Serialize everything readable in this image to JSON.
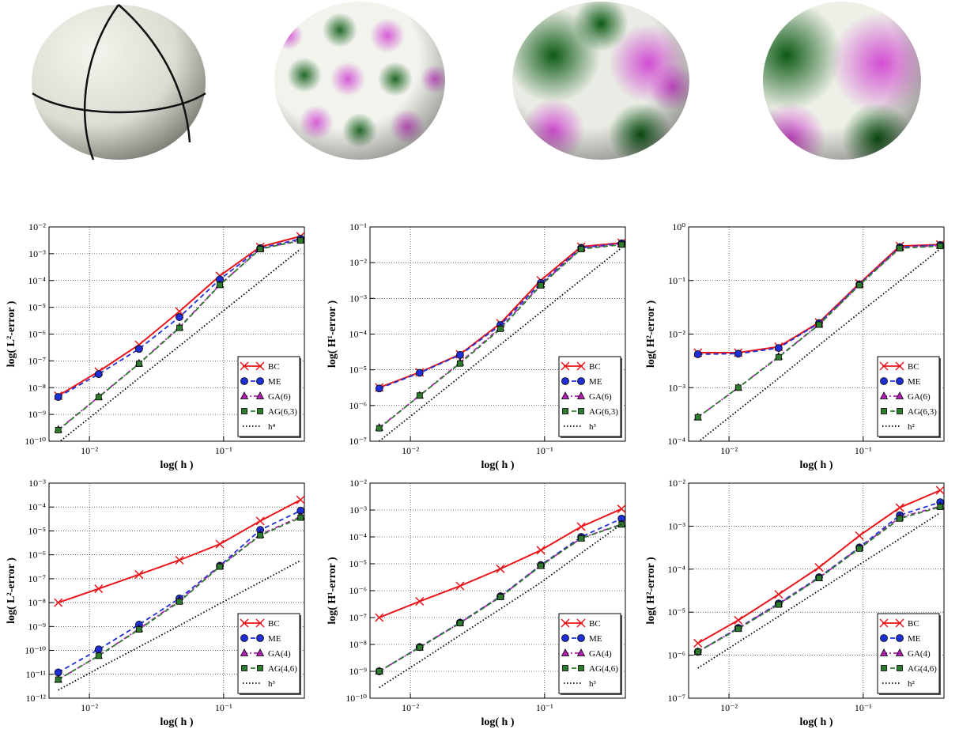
{
  "chart_data": [
    {
      "type": "line",
      "xlabel": "log( h )",
      "ylabel": "log( L²-error )",
      "xscale": "log",
      "yscale": "log",
      "grid": true,
      "legend": "lower right",
      "x": [
        0.005859375,
        0.01171875,
        0.0234375,
        0.046875,
        0.09375,
        0.1875,
        0.375
      ],
      "xlim": [
        0.005,
        0.4
      ],
      "xticks": [
        {
          "value": 0.01,
          "label": "10⁻²"
        },
        {
          "value": 0.1,
          "label": "10⁻¹"
        }
      ],
      "ylim": [
        1e-10,
        0.01
      ],
      "yticks": [
        {
          "value": 1e-10,
          "label": "10⁻¹⁰"
        },
        {
          "value": 1e-09,
          "label": "10⁻⁹"
        },
        {
          "value": 1e-08,
          "label": "10⁻⁸"
        },
        {
          "value": 1e-07,
          "label": "10⁻⁷"
        },
        {
          "value": 1e-06,
          "label": "10⁻⁶"
        },
        {
          "value": 1e-05,
          "label": "10⁻⁵"
        },
        {
          "value": 0.0001,
          "label": "10⁻⁴"
        },
        {
          "value": 0.001,
          "label": "10⁻³"
        },
        {
          "value": 0.01,
          "label": "10⁻²"
        }
      ],
      "series": [
        {
          "name": "BC",
          "color": "#e8161b",
          "marker": "x",
          "linestyle": "solid",
          "values": [
            5e-09,
            4e-08,
            4e-07,
            7e-06,
            0.00015,
            0.0018,
            0.0045
          ]
        },
        {
          "name": "ME",
          "color": "#1f2fd6",
          "marker": "circle",
          "linestyle": "dashed",
          "values": [
            4.5e-09,
            3.2e-08,
            2.8e-07,
            4.3e-06,
            0.00011,
            0.0016,
            0.0036
          ]
        },
        {
          "name": "GA(6)",
          "color": "#b020b0",
          "marker": "triangle",
          "linestyle": "dashdot",
          "values": [
            2.7e-10,
            4.5e-09,
            8e-08,
            1.8e-06,
            7e-05,
            0.0015,
            0.0032
          ]
        },
        {
          "name": "AG(6,3)",
          "color": "#2e7d2e",
          "marker": "square",
          "linestyle": "dashed",
          "values": [
            2.6e-10,
            4.4e-09,
            7.8e-08,
            1.7e-06,
            6.8e-05,
            0.0015,
            0.0031
          ]
        },
        {
          "name": "h⁴",
          "color": "#000000",
          "marker": "none",
          "linestyle": "dotted",
          "values": [
            8.8e-11,
            1.4e-09,
            2.3e-08,
            3.6e-07,
            5.8e-06,
            9.3e-05,
            0.0015
          ]
        }
      ]
    },
    {
      "type": "line",
      "xlabel": "log( h )",
      "ylabel": "log( H¹-error )",
      "xscale": "log",
      "yscale": "log",
      "grid": true,
      "legend": "lower right",
      "x": [
        0.005859375,
        0.01171875,
        0.0234375,
        0.046875,
        0.09375,
        0.1875,
        0.375
      ],
      "xlim": [
        0.005,
        0.4
      ],
      "xticks": [
        {
          "value": 0.01,
          "label": "10⁻²"
        },
        {
          "value": 0.1,
          "label": "10⁻¹"
        }
      ],
      "ylim": [
        1e-07,
        0.1
      ],
      "yticks": [
        {
          "value": 1e-07,
          "label": "10⁻⁷"
        },
        {
          "value": 1e-06,
          "label": "10⁻⁶"
        },
        {
          "value": 1e-05,
          "label": "10⁻⁵"
        },
        {
          "value": 0.0001,
          "label": "10⁻⁴"
        },
        {
          "value": 0.001,
          "label": "10⁻³"
        },
        {
          "value": 0.01,
          "label": "10⁻²"
        },
        {
          "value": 0.1,
          "label": "10⁻¹"
        }
      ],
      "series": [
        {
          "name": "BC",
          "color": "#e8161b",
          "marker": "x",
          "linestyle": "solid",
          "values": [
            3.2e-06,
            8.5e-06,
            2.7e-05,
            0.0002,
            0.0032,
            0.028,
            0.036
          ]
        },
        {
          "name": "ME",
          "color": "#1f2fd6",
          "marker": "circle",
          "linestyle": "dashed",
          "values": [
            3e-06,
            8.2e-06,
            2.6e-05,
            0.00018,
            0.0027,
            0.026,
            0.035
          ]
        },
        {
          "name": "GA(6)",
          "color": "#b020b0",
          "marker": "triangle",
          "linestyle": "dashdot",
          "values": [
            2.4e-07,
            1.9e-06,
            1.6e-05,
            0.00015,
            0.0024,
            0.025,
            0.033
          ]
        },
        {
          "name": "AG(6,3)",
          "color": "#2e7d2e",
          "marker": "square",
          "linestyle": "dashed",
          "values": [
            2.3e-07,
            1.9e-06,
            1.5e-05,
            0.00014,
            0.0023,
            0.024,
            0.032
          ]
        },
        {
          "name": "h³",
          "color": "#000000",
          "marker": "none",
          "linestyle": "dotted",
          "values": [
            1e-07,
            8e-07,
            6.4e-06,
            5.1e-05,
            0.00041,
            0.0033,
            0.026
          ]
        }
      ]
    },
    {
      "type": "line",
      "xlabel": "log( h )",
      "ylabel": "log( H²-error )",
      "xscale": "log",
      "yscale": "log",
      "grid": true,
      "legend": "lower right",
      "x": [
        0.005859375,
        0.01171875,
        0.0234375,
        0.046875,
        0.09375,
        0.1875,
        0.375
      ],
      "xlim": [
        0.005,
        0.4
      ],
      "xticks": [
        {
          "value": 0.01,
          "label": "10⁻²"
        },
        {
          "value": 0.1,
          "label": "10⁻¹"
        }
      ],
      "ylim": [
        0.0001,
        1
      ],
      "yticks": [
        {
          "value": 0.0001,
          "label": "10⁻⁴"
        },
        {
          "value": 0.001,
          "label": "10⁻³"
        },
        {
          "value": 0.01,
          "label": "10⁻²"
        },
        {
          "value": 0.1,
          "label": "10⁻¹"
        },
        {
          "value": 1,
          "label": "10⁰"
        }
      ],
      "series": [
        {
          "name": "BC",
          "color": "#e8161b",
          "marker": "x",
          "linestyle": "solid",
          "values": [
            0.0045,
            0.0045,
            0.0058,
            0.0165,
            0.088,
            0.44,
            0.47
          ]
        },
        {
          "name": "ME",
          "color": "#1f2fd6",
          "marker": "circle",
          "linestyle": "dashed",
          "values": [
            0.0042,
            0.0043,
            0.0055,
            0.016,
            0.085,
            0.42,
            0.46
          ]
        },
        {
          "name": "GA(6)",
          "color": "#b020b0",
          "marker": "triangle",
          "linestyle": "dashdot",
          "values": [
            0.00028,
            0.001,
            0.0038,
            0.015,
            0.083,
            0.41,
            0.45
          ]
        },
        {
          "name": "AG(6,3)",
          "color": "#2e7d2e",
          "marker": "square",
          "linestyle": "dashed",
          "values": [
            0.00028,
            0.001,
            0.0037,
            0.015,
            0.082,
            0.4,
            0.44
          ]
        },
        {
          "name": "h²",
          "color": "#000000",
          "marker": "none",
          "linestyle": "dotted",
          "values": [
            9.6e-05,
            0.00038,
            0.0015,
            0.0062,
            0.025,
            0.098,
            0.39
          ]
        }
      ]
    },
    {
      "type": "line",
      "xlabel": "log( h )",
      "ylabel": "log( L²-error )",
      "xscale": "log",
      "yscale": "log",
      "grid": true,
      "legend": "lower right",
      "x": [
        0.005859375,
        0.01171875,
        0.0234375,
        0.046875,
        0.09375,
        0.1875,
        0.375
      ],
      "xlim": [
        0.005,
        0.4
      ],
      "xticks": [
        {
          "value": 0.01,
          "label": "10⁻²"
        },
        {
          "value": 0.1,
          "label": "10⁻¹"
        }
      ],
      "ylim": [
        1e-12,
        0.001
      ],
      "yticks": [
        {
          "value": 1e-12,
          "label": "10⁻¹²"
        },
        {
          "value": 1e-11,
          "label": "10⁻¹¹"
        },
        {
          "value": 1e-10,
          "label": "10⁻¹⁰"
        },
        {
          "value": 1e-09,
          "label": "10⁻⁹"
        },
        {
          "value": 1e-08,
          "label": "10⁻⁸"
        },
        {
          "value": 1e-07,
          "label": "10⁻⁷"
        },
        {
          "value": 1e-06,
          "label": "10⁻⁶"
        },
        {
          "value": 1e-05,
          "label": "10⁻⁵"
        },
        {
          "value": 0.0001,
          "label": "10⁻⁴"
        },
        {
          "value": 0.001,
          "label": "10⁻³"
        }
      ],
      "series": [
        {
          "name": "BC",
          "color": "#e8161b",
          "marker": "x",
          "linestyle": "solid",
          "values": [
            1e-08,
            3.8e-08,
            1.5e-07,
            6e-07,
            2.8e-06,
            2.6e-05,
            0.0002
          ]
        },
        {
          "name": "ME",
          "color": "#1f2fd6",
          "marker": "circle",
          "linestyle": "dashed",
          "values": [
            1.2e-11,
            1.1e-10,
            1.2e-09,
            1.5e-08,
            3.5e-07,
            1.1e-05,
            7e-05
          ]
        },
        {
          "name": "GA(4)",
          "color": "#b020b0",
          "marker": "triangle",
          "linestyle": "dashdot",
          "values": [
            6e-12,
            6e-11,
            8e-10,
            1.2e-08,
            3.3e-07,
            7e-06,
            4e-05
          ]
        },
        {
          "name": "AG(4,6)",
          "color": "#2e7d2e",
          "marker": "square",
          "linestyle": "dashed",
          "values": [
            6e-12,
            6e-11,
            7.5e-10,
            1.1e-08,
            3.2e-07,
            6.5e-06,
            3.6e-05
          ]
        },
        {
          "name": "h³",
          "color": "#000000",
          "marker": "none",
          "linestyle": "dotted",
          "values": [
            2.2e-12,
            1.8e-11,
            1.4e-10,
            1.1e-09,
            9.1e-09,
            7.2e-08,
            5.8e-07
          ]
        }
      ]
    },
    {
      "type": "line",
      "xlabel": "log( h )",
      "ylabel": "log( H¹-error )",
      "xscale": "log",
      "yscale": "log",
      "grid": true,
      "legend": "lower right",
      "x": [
        0.005859375,
        0.01171875,
        0.0234375,
        0.046875,
        0.09375,
        0.1875,
        0.375
      ],
      "xlim": [
        0.005,
        0.4
      ],
      "xticks": [
        {
          "value": 0.01,
          "label": "10⁻²"
        },
        {
          "value": 0.1,
          "label": "10⁻¹"
        }
      ],
      "ylim": [
        1e-10,
        0.01
      ],
      "yticks": [
        {
          "value": 1e-10,
          "label": "10⁻¹⁰"
        },
        {
          "value": 1e-09,
          "label": "10⁻⁹"
        },
        {
          "value": 1e-08,
          "label": "10⁻⁸"
        },
        {
          "value": 1e-07,
          "label": "10⁻⁷"
        },
        {
          "value": 1e-06,
          "label": "10⁻⁶"
        },
        {
          "value": 1e-05,
          "label": "10⁻⁵"
        },
        {
          "value": 0.0001,
          "label": "10⁻⁴"
        },
        {
          "value": 0.001,
          "label": "10⁻³"
        },
        {
          "value": 0.01,
          "label": "10⁻²"
        }
      ],
      "series": [
        {
          "name": "BC",
          "color": "#e8161b",
          "marker": "x",
          "linestyle": "solid",
          "values": [
            1e-07,
            4e-07,
            1.5e-06,
            6.5e-06,
            3.2e-05,
            0.00024,
            0.0011
          ]
        },
        {
          "name": "ME",
          "color": "#1f2fd6",
          "marker": "circle",
          "linestyle": "dashed",
          "values": [
            1e-09,
            8e-09,
            6.5e-08,
            6.2e-07,
            9e-06,
            0.0001,
            0.00048
          ]
        },
        {
          "name": "GA(4)",
          "color": "#b020b0",
          "marker": "triangle",
          "linestyle": "dashdot",
          "values": [
            1e-09,
            7.8e-09,
            6.3e-08,
            6e-07,
            8.6e-06,
            9e-05,
            0.0003
          ]
        },
        {
          "name": "AG(4,6)",
          "color": "#2e7d2e",
          "marker": "square",
          "linestyle": "dashed",
          "values": [
            1e-09,
            7.7e-09,
            6.2e-08,
            5.8e-07,
            8.4e-06,
            8.8e-05,
            0.00029
          ]
        },
        {
          "name": "h³",
          "color": "#000000",
          "marker": "none",
          "linestyle": "dotted",
          "values": [
            2.5e-10,
            2.3e-09,
            2.2e-08,
            2.1e-07,
            2e-06,
            2.5e-05,
            0.0003
          ]
        }
      ]
    },
    {
      "type": "line",
      "xlabel": "log( h )",
      "ylabel": "log( H²-error )",
      "xscale": "log",
      "yscale": "log",
      "grid": true,
      "legend": "lower right",
      "x": [
        0.005859375,
        0.01171875,
        0.0234375,
        0.046875,
        0.09375,
        0.1875,
        0.375
      ],
      "xlim": [
        0.005,
        0.4
      ],
      "xticks": [
        {
          "value": 0.01,
          "label": "10⁻²"
        },
        {
          "value": 0.1,
          "label": "10⁻¹"
        }
      ],
      "ylim": [
        1e-07,
        0.01
      ],
      "yticks": [
        {
          "value": 1e-07,
          "label": "10⁻⁷"
        },
        {
          "value": 1e-06,
          "label": "10⁻⁶"
        },
        {
          "value": 1e-05,
          "label": "10⁻⁵"
        },
        {
          "value": 0.0001,
          "label": "10⁻⁴"
        },
        {
          "value": 0.001,
          "label": "10⁻³"
        },
        {
          "value": 0.01,
          "label": "10⁻²"
        }
      ],
      "series": [
        {
          "name": "BC",
          "color": "#e8161b",
          "marker": "x",
          "linestyle": "solid",
          "values": [
            1.9e-06,
            6.5e-06,
            2.6e-05,
            0.00011,
            0.0006,
            0.0027,
            0.0068
          ]
        },
        {
          "name": "ME",
          "color": "#1f2fd6",
          "marker": "circle",
          "linestyle": "dashed",
          "values": [
            1.2e-06,
            4.3e-06,
            1.6e-05,
            6.5e-05,
            0.00032,
            0.0018,
            0.0036
          ]
        },
        {
          "name": "GA(4)",
          "color": "#b020b0",
          "marker": "triangle",
          "linestyle": "dashdot",
          "values": [
            1.2e-06,
            4.2e-06,
            1.55e-05,
            6.3e-05,
            0.00031,
            0.0016,
            0.0029
          ]
        },
        {
          "name": "AG(4,6)",
          "color": "#2e7d2e",
          "marker": "square",
          "linestyle": "dashed",
          "values": [
            1.2e-06,
            4.1e-06,
            1.5e-05,
            6.2e-05,
            0.0003,
            0.0015,
            0.0028
          ]
        },
        {
          "name": "h²",
          "color": "#000000",
          "marker": "none",
          "linestyle": "dotted",
          "values": [
            5e-07,
            2e-06,
            8e-06,
            3.2e-05,
            0.000128,
            0.00051,
            0.00205
          ]
        }
      ]
    }
  ]
}
